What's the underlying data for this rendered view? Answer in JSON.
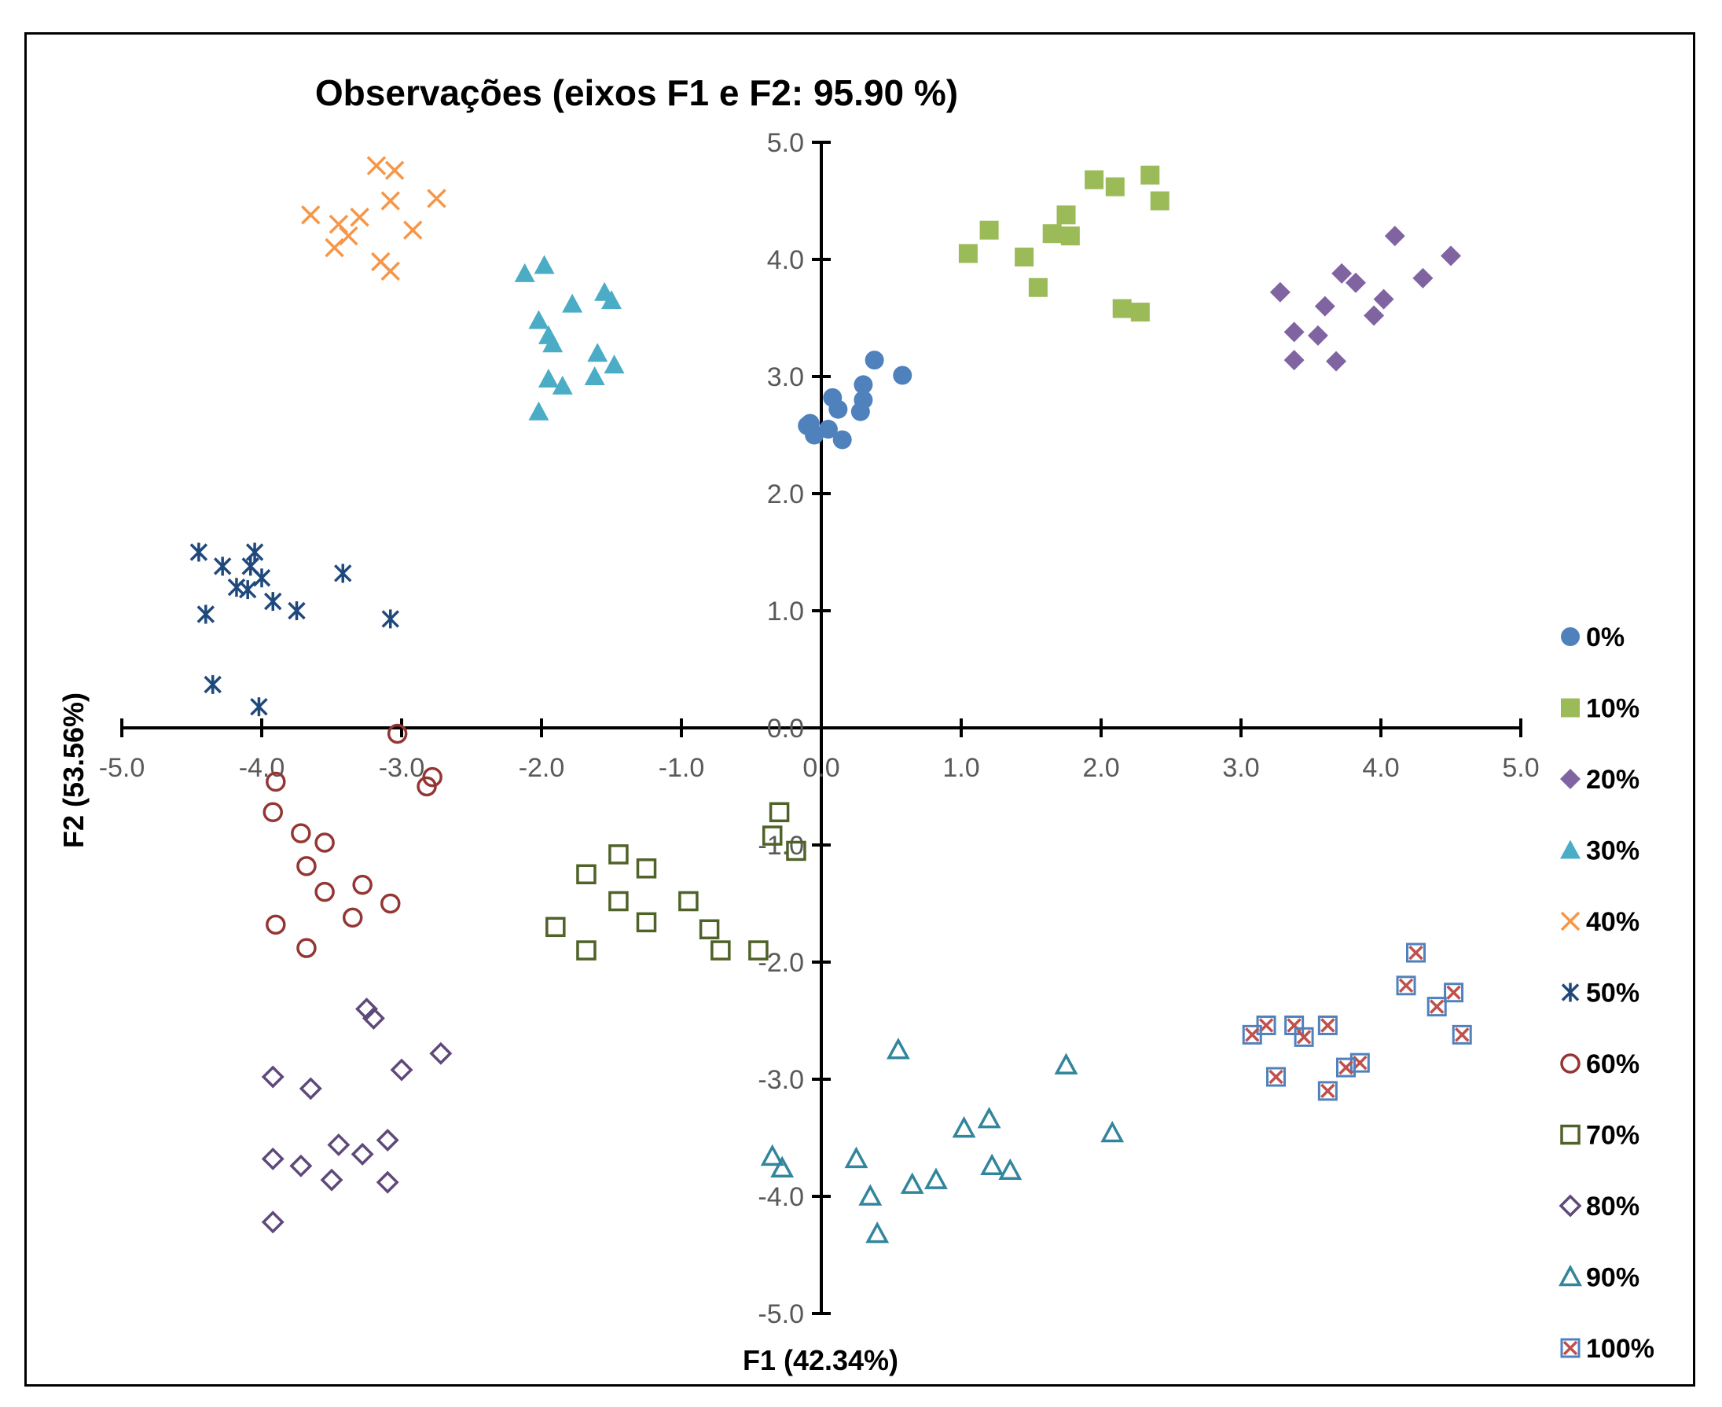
{
  "chart_data": {
    "type": "scatter",
    "title": "Observações (eixos F1 e F2: 95.90 %)",
    "xlabel": "F1 (42.34%)",
    "ylabel": "F2 (53.56%)",
    "xlim": [
      -5,
      5
    ],
    "ylim": [
      -5,
      5
    ],
    "xticks": [
      "-5.0",
      "-4.0",
      "-3.0",
      "-2.0",
      "-1.0",
      "0.0",
      "1.0",
      "2.0",
      "3.0",
      "4.0",
      "5.0"
    ],
    "yticks": [
      "5.0",
      "4.0",
      "3.0",
      "2.0",
      "1.0",
      "0.0",
      "-1.0",
      "-2.0",
      "-3.0",
      "-4.0",
      "-5.0"
    ],
    "grid": false,
    "legend_position": "right",
    "series": [
      {
        "name": "0%",
        "marker": "circle-filled",
        "color": "#4f81bd",
        "points": [
          [
            0.38,
            3.14
          ],
          [
            0.58,
            3.01
          ],
          [
            0.3,
            2.93
          ],
          [
            0.3,
            2.8
          ],
          [
            0.28,
            2.7
          ],
          [
            0.08,
            2.82
          ],
          [
            0.12,
            2.72
          ],
          [
            -0.08,
            2.6
          ],
          [
            0.05,
            2.55
          ],
          [
            -0.05,
            2.5
          ],
          [
            0.15,
            2.46
          ],
          [
            -0.1,
            2.58
          ]
        ]
      },
      {
        "name": "10%",
        "marker": "square-filled",
        "color": "#9bbb59",
        "points": [
          [
            1.95,
            4.68
          ],
          [
            2.1,
            4.62
          ],
          [
            2.35,
            4.72
          ],
          [
            2.42,
            4.5
          ],
          [
            1.2,
            4.25
          ],
          [
            1.05,
            4.05
          ],
          [
            1.45,
            4.02
          ],
          [
            1.65,
            4.22
          ],
          [
            1.75,
            4.38
          ],
          [
            1.78,
            4.2
          ],
          [
            1.55,
            3.76
          ],
          [
            2.15,
            3.58
          ],
          [
            2.28,
            3.55
          ]
        ]
      },
      {
        "name": "20%",
        "marker": "diamond-filled",
        "color": "#8064a2",
        "points": [
          [
            4.1,
            4.2
          ],
          [
            4.5,
            4.03
          ],
          [
            4.3,
            3.84
          ],
          [
            3.28,
            3.72
          ],
          [
            3.72,
            3.88
          ],
          [
            3.82,
            3.8
          ],
          [
            4.02,
            3.66
          ],
          [
            3.6,
            3.6
          ],
          [
            3.38,
            3.38
          ],
          [
            3.55,
            3.35
          ],
          [
            3.95,
            3.52
          ],
          [
            3.38,
            3.14
          ],
          [
            3.68,
            3.13
          ]
        ]
      },
      {
        "name": "30%",
        "marker": "triangle-filled",
        "color": "#4bacc6",
        "points": [
          [
            -1.98,
            3.95
          ],
          [
            -2.12,
            3.88
          ],
          [
            -1.55,
            3.72
          ],
          [
            -1.5,
            3.65
          ],
          [
            -1.78,
            3.62
          ],
          [
            -2.02,
            3.48
          ],
          [
            -1.95,
            3.35
          ],
          [
            -1.92,
            3.28
          ],
          [
            -1.6,
            3.2
          ],
          [
            -1.48,
            3.1
          ],
          [
            -1.95,
            2.98
          ],
          [
            -1.85,
            2.92
          ],
          [
            -1.62,
            3.0
          ],
          [
            -2.02,
            2.7
          ]
        ]
      },
      {
        "name": "40%",
        "marker": "x",
        "color": "#f79646",
        "points": [
          [
            -3.18,
            4.8
          ],
          [
            -3.05,
            4.76
          ],
          [
            -2.75,
            4.52
          ],
          [
            -3.08,
            4.5
          ],
          [
            -3.65,
            4.38
          ],
          [
            -3.3,
            4.36
          ],
          [
            -3.45,
            4.3
          ],
          [
            -2.92,
            4.25
          ],
          [
            -3.38,
            4.2
          ],
          [
            -3.48,
            4.1
          ],
          [
            -3.15,
            3.98
          ],
          [
            -3.08,
            3.9
          ]
        ]
      },
      {
        "name": "50%",
        "marker": "asterisk",
        "color": "#1f497d",
        "points": [
          [
            -4.45,
            1.5
          ],
          [
            -4.05,
            1.5
          ],
          [
            -4.28,
            1.38
          ],
          [
            -4.08,
            1.38
          ],
          [
            -4.0,
            1.28
          ],
          [
            -3.42,
            1.32
          ],
          [
            -4.18,
            1.2
          ],
          [
            -4.1,
            1.18
          ],
          [
            -3.92,
            1.08
          ],
          [
            -3.75,
            1.0
          ],
          [
            -4.4,
            0.97
          ],
          [
            -3.08,
            0.93
          ],
          [
            -4.35,
            0.37
          ],
          [
            -4.02,
            0.18
          ]
        ]
      },
      {
        "name": "60%",
        "marker": "circle-open",
        "color": "#943634",
        "points": [
          [
            -3.03,
            -0.05
          ],
          [
            -2.78,
            -0.42
          ],
          [
            -2.82,
            -0.5
          ],
          [
            -3.9,
            -0.46
          ],
          [
            -3.92,
            -0.72
          ],
          [
            -3.72,
            -0.9
          ],
          [
            -3.55,
            -0.98
          ],
          [
            -3.68,
            -1.18
          ],
          [
            -3.28,
            -1.34
          ],
          [
            -3.55,
            -1.4
          ],
          [
            -3.08,
            -1.5
          ],
          [
            -3.35,
            -1.62
          ],
          [
            -3.9,
            -1.68
          ],
          [
            -3.68,
            -1.88
          ]
        ]
      },
      {
        "name": "70%",
        "marker": "square-open",
        "color": "#4f6228",
        "points": [
          [
            -0.3,
            -0.72
          ],
          [
            -0.35,
            -0.92
          ],
          [
            -0.18,
            -1.05
          ],
          [
            -1.45,
            -1.08
          ],
          [
            -1.68,
            -1.25
          ],
          [
            -1.25,
            -1.2
          ],
          [
            -0.95,
            -1.48
          ],
          [
            -1.45,
            -1.48
          ],
          [
            -0.8,
            -1.72
          ],
          [
            -1.25,
            -1.66
          ],
          [
            -1.9,
            -1.7
          ],
          [
            -0.72,
            -1.9
          ],
          [
            -1.68,
            -1.9
          ],
          [
            -0.45,
            -1.9
          ]
        ]
      },
      {
        "name": "80%",
        "marker": "diamond-open",
        "color": "#5f497a",
        "points": [
          [
            -3.25,
            -2.4
          ],
          [
            -3.2,
            -2.48
          ],
          [
            -2.72,
            -2.78
          ],
          [
            -3.0,
            -2.92
          ],
          [
            -3.92,
            -2.98
          ],
          [
            -3.65,
            -3.08
          ],
          [
            -3.1,
            -3.52
          ],
          [
            -3.45,
            -3.56
          ],
          [
            -3.28,
            -3.64
          ],
          [
            -3.92,
            -3.68
          ],
          [
            -3.72,
            -3.74
          ],
          [
            -3.5,
            -3.86
          ],
          [
            -3.1,
            -3.88
          ],
          [
            -3.92,
            -4.22
          ]
        ]
      },
      {
        "name": "90%",
        "marker": "triangle-open",
        "color": "#31859c",
        "points": [
          [
            0.55,
            -2.75
          ],
          [
            1.75,
            -2.88
          ],
          [
            1.2,
            -3.34
          ],
          [
            1.02,
            -3.42
          ],
          [
            2.08,
            -3.46
          ],
          [
            -0.35,
            -3.66
          ],
          [
            0.25,
            -3.68
          ],
          [
            -0.28,
            -3.76
          ],
          [
            1.22,
            -3.74
          ],
          [
            1.35,
            -3.78
          ],
          [
            0.82,
            -3.86
          ],
          [
            0.65,
            -3.9
          ],
          [
            0.35,
            -4.0
          ],
          [
            0.4,
            -4.32
          ]
        ]
      },
      {
        "name": "100%",
        "marker": "square-x",
        "color": "#c0504d",
        "points": [
          [
            4.25,
            -1.92
          ],
          [
            4.18,
            -2.2
          ],
          [
            4.52,
            -2.26
          ],
          [
            4.4,
            -2.38
          ],
          [
            3.18,
            -2.54
          ],
          [
            3.38,
            -2.54
          ],
          [
            3.62,
            -2.54
          ],
          [
            3.08,
            -2.62
          ],
          [
            3.45,
            -2.64
          ],
          [
            4.58,
            -2.62
          ],
          [
            3.85,
            -2.86
          ],
          [
            3.75,
            -2.9
          ],
          [
            3.25,
            -2.98
          ],
          [
            3.62,
            -3.1
          ]
        ]
      }
    ]
  }
}
